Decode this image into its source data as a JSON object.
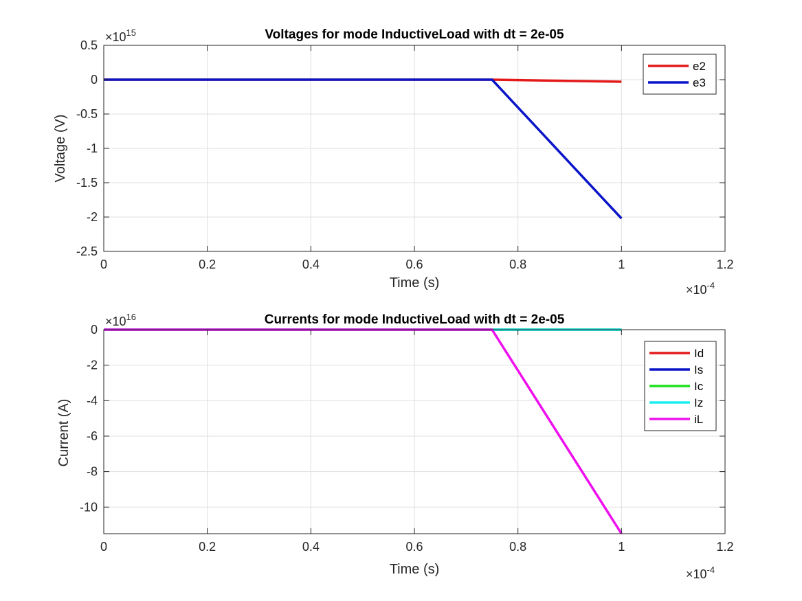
{
  "chart_data": [
    {
      "type": "line",
      "title": "Voltages for mode InductiveLoad with dt = 2e-05",
      "xlabel": "Time (s)",
      "ylabel": "Voltage (V)",
      "x_exponent": "×10",
      "x_exponent_power": "-4",
      "y_exponent": "×10",
      "y_exponent_power": "15",
      "xlim": [
        0,
        1.2
      ],
      "ylim": [
        -2.5,
        0.5
      ],
      "xticks": [
        0,
        0.2,
        0.4,
        0.6,
        0.8,
        1,
        1.2
      ],
      "xtick_labels": [
        "0",
        "0.2",
        "0.4",
        "0.6",
        "0.8",
        "1",
        "1.2"
      ],
      "yticks": [
        -2.5,
        -2,
        -1.5,
        -1,
        -0.5,
        0,
        0.5
      ],
      "ytick_labels": [
        "-2.5",
        "-2",
        "-1.5",
        "-1",
        "-0.5",
        "0",
        "0.5"
      ],
      "grid": true,
      "legend_position": "top-right",
      "x": [
        0,
        0.2,
        0.4,
        0.6,
        0.75,
        1
      ],
      "series": [
        {
          "name": "e2",
          "color": "#e41a1a",
          "values": [
            0,
            0,
            0,
            0,
            0,
            -0.03
          ]
        },
        {
          "name": "e3",
          "color": "#0a14c8",
          "values": [
            0,
            0,
            0,
            0,
            0,
            -2.02
          ]
        }
      ]
    },
    {
      "type": "line",
      "title": "Currents for mode InductiveLoad with dt = 2e-05",
      "xlabel": "Time (s)",
      "ylabel": "Current (A)",
      "x_exponent": "×10",
      "x_exponent_power": "-4",
      "y_exponent": "×10",
      "y_exponent_power": "16",
      "xlim": [
        0,
        1.2
      ],
      "ylim": [
        -11.5,
        0
      ],
      "xticks": [
        0,
        0.2,
        0.4,
        0.6,
        0.8,
        1,
        1.2
      ],
      "xtick_labels": [
        "0",
        "0.2",
        "0.4",
        "0.6",
        "0.8",
        "1",
        "1.2"
      ],
      "yticks": [
        -10,
        -8,
        -6,
        -4,
        -2,
        0
      ],
      "ytick_labels": [
        "-10",
        "-8",
        "-6",
        "-4",
        "-2",
        "0"
      ],
      "grid": true,
      "legend_position": "top-right",
      "x": [
        0,
        0.2,
        0.4,
        0.6,
        0.75,
        1
      ],
      "series": [
        {
          "name": "Id",
          "color": "#e41a1a",
          "values": [
            0,
            0,
            0,
            0,
            0,
            0
          ]
        },
        {
          "name": "Is",
          "color": "#0a14c8",
          "values": [
            0,
            0,
            0,
            0,
            0,
            0
          ]
        },
        {
          "name": "Ic",
          "color": "#1ee01e",
          "values": [
            0,
            0,
            0,
            0,
            0,
            0
          ]
        },
        {
          "name": "Iz",
          "color": "#1eeef0",
          "values": [
            0,
            0,
            0,
            0,
            0,
            0
          ]
        },
        {
          "name": "iL",
          "color": "#ee10ee",
          "values": [
            0,
            0,
            0,
            0,
            0,
            -11.5
          ]
        }
      ]
    }
  ]
}
